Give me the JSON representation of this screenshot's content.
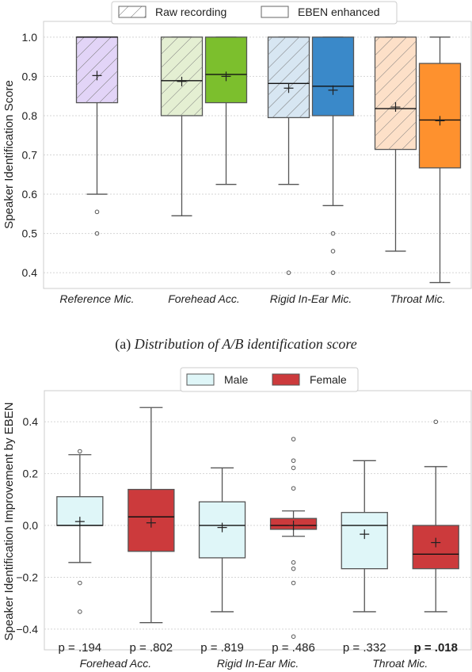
{
  "colors": {
    "raw_pattern": "#ffffff",
    "reference": "#e2d4f7",
    "forehead_raw": "#e4efd2",
    "forehead_eben": "#7cbf2d",
    "inear_raw": "#d7e6f2",
    "inear_eben": "#3a89c9",
    "throat_raw": "#fde0c8",
    "throat_eben": "#fe912e",
    "male": "#dff6f8",
    "female": "#cc3a3c",
    "whisker": "#555555"
  },
  "chart_data": [
    {
      "type": "box",
      "ylabel": "Speaker Identification Score",
      "ylim": [
        0.36,
        1.04
      ],
      "yticks": [
        "0.4",
        "0.5",
        "0.6",
        "0.7",
        "0.8",
        "0.9",
        "1.0"
      ],
      "ytick_values": [
        0.4,
        0.5,
        0.6,
        0.7,
        0.8,
        0.9,
        1.0
      ],
      "grid": true,
      "legend_position": "top-center",
      "legend": [
        "Raw recording",
        "EBEN enhanced"
      ],
      "categories": [
        "Reference Mic.",
        "Forehead Acc.",
        "Rigid In-Ear Mic.",
        "Throat Mic."
      ],
      "boxes": [
        {
          "category": 0,
          "series": "raw",
          "color": "#e2d4f7",
          "hatched": true,
          "whislo": 0.6,
          "q1": 0.833,
          "median": 1.0,
          "q3": 1.0,
          "whishi": 1.0,
          "mean": 0.902,
          "fliers": [
            0.555,
            0.5
          ]
        },
        {
          "category": 1,
          "series": "raw",
          "color": "#e4efd2",
          "hatched": true,
          "whislo": 0.545,
          "q1": 0.8,
          "median": 0.889,
          "q3": 1.0,
          "whishi": 1.0,
          "mean": 0.887,
          "fliers": []
        },
        {
          "category": 1,
          "series": "eben",
          "color": "#7cbf2d",
          "hatched": false,
          "whislo": 0.625,
          "q1": 0.833,
          "median": 0.905,
          "q3": 1.0,
          "whishi": 1.0,
          "mean": 0.9,
          "fliers": []
        },
        {
          "category": 2,
          "series": "raw",
          "color": "#d7e6f2",
          "hatched": true,
          "whislo": 0.625,
          "q1": 0.795,
          "median": 0.882,
          "q3": 1.0,
          "whishi": 1.0,
          "mean": 0.87,
          "fliers": [
            0.4
          ]
        },
        {
          "category": 2,
          "series": "eben",
          "color": "#3a89c9",
          "hatched": false,
          "whislo": 0.571,
          "q1": 0.8,
          "median": 0.875,
          "q3": 1.0,
          "whishi": 1.0,
          "mean": 0.865,
          "fliers": [
            0.5,
            0.455,
            0.4
          ]
        },
        {
          "category": 3,
          "series": "raw",
          "color": "#fde0c8",
          "hatched": true,
          "whislo": 0.455,
          "q1": 0.714,
          "median": 0.818,
          "q3": 1.0,
          "whishi": 1.0,
          "mean": 0.822,
          "fliers": []
        },
        {
          "category": 3,
          "series": "eben",
          "color": "#fe912e",
          "hatched": false,
          "whislo": 0.375,
          "q1": 0.667,
          "median": 0.789,
          "q3": 0.933,
          "whishi": 1.0,
          "mean": 0.787,
          "fliers": []
        }
      ]
    },
    {
      "type": "box",
      "ylabel": "Speaker Identification Improvement by EBEN",
      "ylim": [
        -0.48,
        0.52
      ],
      "yticks": [
        "−0.4",
        "−0.2",
        "0.0",
        "0.2",
        "0.4"
      ],
      "ytick_values": [
        -0.4,
        -0.2,
        0.0,
        0.2,
        0.4
      ],
      "grid": true,
      "legend_position": "top-center",
      "legend": [
        "Male",
        "Female"
      ],
      "categories": [
        "Forehead Acc.",
        "Rigid In-Ear Mic.",
        "Throat Mic."
      ],
      "boxes": [
        {
          "category": 0,
          "series": "male",
          "color": "#dff6f8",
          "whislo": -0.143,
          "q1": 0.0,
          "median": 0.0,
          "q3": 0.111,
          "whishi": 0.273,
          "mean": 0.015,
          "fliers": [
            0.286,
            -0.222,
            -0.333
          ]
        },
        {
          "category": 0,
          "series": "female",
          "color": "#cc3a3c",
          "whislo": -0.375,
          "q1": -0.1,
          "median": 0.033,
          "q3": 0.139,
          "whishi": 0.455,
          "mean": 0.01,
          "fliers": []
        },
        {
          "category": 1,
          "series": "male",
          "color": "#dff6f8",
          "whislo": -0.333,
          "q1": -0.125,
          "median": 0.0,
          "q3": 0.091,
          "whishi": 0.222,
          "mean": -0.008,
          "fliers": []
        },
        {
          "category": 1,
          "series": "female",
          "color": "#cc3a3c",
          "whislo": -0.042,
          "q1": -0.015,
          "median": 0.0,
          "q3": 0.027,
          "whishi": 0.056,
          "mean": 0.0,
          "fliers": [
            0.333,
            0.25,
            0.222,
            0.143,
            -0.143,
            -0.167,
            -0.222,
            -0.429
          ]
        },
        {
          "category": 2,
          "series": "male",
          "color": "#dff6f8",
          "whislo": -0.333,
          "q1": -0.167,
          "median": 0.0,
          "q3": 0.05,
          "whishi": 0.25,
          "mean": -0.034,
          "fliers": []
        },
        {
          "category": 2,
          "series": "female",
          "color": "#cc3a3c",
          "whislo": -0.333,
          "q1": -0.167,
          "median": -0.111,
          "q3": 0.0,
          "whishi": 0.227,
          "mean": -0.066,
          "fliers": [
            0.4
          ]
        }
      ],
      "annotations": [
        {
          "category": 0,
          "series": "male",
          "text": "p = .194",
          "bold": false
        },
        {
          "category": 0,
          "series": "female",
          "text": "p = .802",
          "bold": false
        },
        {
          "category": 1,
          "series": "male",
          "text": "p = .819",
          "bold": false
        },
        {
          "category": 1,
          "series": "female",
          "text": "p = .486",
          "bold": false
        },
        {
          "category": 2,
          "series": "male",
          "text": "p = .332",
          "bold": false
        },
        {
          "category": 2,
          "series": "female",
          "text": "p = .018",
          "bold": true
        }
      ]
    }
  ],
  "caption": "(a) ",
  "caption_italic": "Distribution of A/B identification score"
}
